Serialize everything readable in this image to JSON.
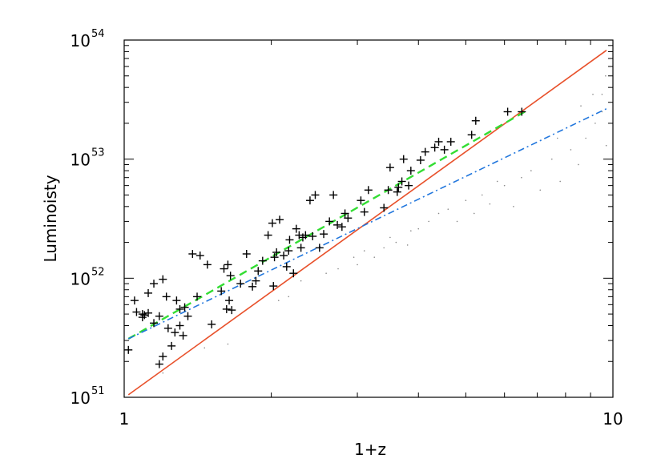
{
  "chart_data": {
    "type": "scatter",
    "title": "",
    "xlabel": "1+z",
    "ylabel": "Luminoisty",
    "xscale": "log",
    "yscale": "log",
    "xlim": [
      1,
      10
    ],
    "ylim": [
      1e+51,
      1e+54
    ],
    "x_ticks": [
      {
        "value": 1,
        "label": "1"
      },
      {
        "value": 10,
        "label": "10"
      }
    ],
    "y_ticks": [
      {
        "value": 1e+51,
        "base": "10",
        "exp": "51"
      },
      {
        "value": 1e+52,
        "base": "10",
        "exp": "52"
      },
      {
        "value": 1e+53,
        "base": "10",
        "exp": "53"
      },
      {
        "value": 1e+54,
        "base": "10",
        "exp": "54"
      }
    ],
    "grid": false,
    "legend": "none",
    "series": [
      {
        "marker": "plus",
        "color": "#000000",
        "points": [
          [
            1.02,
            2.5e+51
          ],
          [
            1.05,
            6.5e+51
          ],
          [
            1.06,
            5.2e+51
          ],
          [
            1.09,
            5e+51
          ],
          [
            1.09,
            4.7e+51
          ],
          [
            1.1,
            4.9e+51
          ],
          [
            1.12,
            5.1e+51
          ],
          [
            1.12,
            7.5e+51
          ],
          [
            1.15,
            9e+51
          ],
          [
            1.15,
            4.2e+51
          ],
          [
            1.18,
            1.9e+51
          ],
          [
            1.18,
            4.8e+51
          ],
          [
            1.2,
            2.2e+51
          ],
          [
            1.2,
            9.8e+51
          ],
          [
            1.22,
            7e+51
          ],
          [
            1.23,
            3.8e+51
          ],
          [
            1.25,
            2.7e+51
          ],
          [
            1.27,
            3.5e+51
          ],
          [
            1.28,
            6.5e+51
          ],
          [
            1.3,
            5.5e+51
          ],
          [
            1.3,
            4e+51
          ],
          [
            1.32,
            3.3e+51
          ],
          [
            1.33,
            5.7e+51
          ],
          [
            1.35,
            4.8e+51
          ],
          [
            1.38,
            1.6e+52
          ],
          [
            1.41,
            7e+51
          ],
          [
            1.43,
            1.55e+52
          ],
          [
            1.48,
            1.3e+52
          ],
          [
            1.51,
            4.1e+51
          ],
          [
            1.58,
            7.8e+51
          ],
          [
            1.6,
            1.2e+52
          ],
          [
            1.62,
            5.5e+51
          ],
          [
            1.63,
            1.3e+52
          ],
          [
            1.64,
            6.5e+51
          ],
          [
            1.65,
            1.05e+52
          ],
          [
            1.66,
            5.4e+51
          ],
          [
            1.73,
            9e+51
          ],
          [
            1.78,
            1.6e+52
          ],
          [
            1.83,
            8.5e+51
          ],
          [
            1.86,
            9.5e+51
          ],
          [
            1.88,
            1.15e+52
          ],
          [
            1.92,
            1.4e+52
          ],
          [
            1.97,
            2.3e+52
          ],
          [
            2.01,
            2.9e+52
          ],
          [
            2.02,
            8.6e+51
          ],
          [
            2.03,
            1.5e+52
          ],
          [
            2.05,
            1.65e+52
          ],
          [
            2.08,
            3.1e+52
          ],
          [
            2.12,
            1.55e+52
          ],
          [
            2.15,
            1.25e+52
          ],
          [
            2.17,
            1.7e+52
          ],
          [
            2.18,
            2.1e+52
          ],
          [
            2.22,
            1.1e+52
          ],
          [
            2.25,
            2.6e+52
          ],
          [
            2.28,
            2.3e+52
          ],
          [
            2.3,
            1.8e+52
          ],
          [
            2.32,
            2.2e+52
          ],
          [
            2.35,
            2.3e+52
          ],
          [
            2.4,
            4.5e+52
          ],
          [
            2.43,
            2.25e+52
          ],
          [
            2.46,
            5e+52
          ],
          [
            2.51,
            1.8e+52
          ],
          [
            2.56,
            2.35e+52
          ],
          [
            2.63,
            3e+52
          ],
          [
            2.68,
            5e+52
          ],
          [
            2.73,
            2.8e+52
          ],
          [
            2.79,
            2.7e+52
          ],
          [
            2.83,
            3.5e+52
          ],
          [
            2.87,
            3.2e+52
          ],
          [
            3.05,
            4.5e+52
          ],
          [
            3.1,
            3.6e+52
          ],
          [
            3.16,
            5.5e+52
          ],
          [
            3.4,
            3.9e+52
          ],
          [
            3.47,
            5.5e+52
          ],
          [
            3.5,
            8.5e+52
          ],
          [
            3.62,
            5.3e+52
          ],
          [
            3.64,
            5.8e+52
          ],
          [
            3.7,
            6.5e+52
          ],
          [
            3.73,
            1e+53
          ],
          [
            3.82,
            6e+52
          ],
          [
            3.86,
            8e+52
          ],
          [
            4.04,
            9.8e+52
          ],
          [
            4.13,
            1.15e+53
          ],
          [
            4.32,
            1.25e+53
          ],
          [
            4.4,
            1.4e+53
          ],
          [
            4.52,
            1.2e+53
          ],
          [
            4.66,
            1.4e+53
          ],
          [
            5.14,
            1.6e+53
          ],
          [
            5.24,
            2.1e+53
          ],
          [
            6.09,
            2.5e+53
          ],
          [
            6.51,
            2.5e+53
          ]
        ]
      },
      {
        "marker": "dot",
        "color": "#888888",
        "points": [
          [
            1.2,
            1.6e+51
          ],
          [
            1.46,
            2.6e+51
          ],
          [
            1.63,
            2.8e+51
          ],
          [
            2.07,
            6.5e+51
          ],
          [
            2.17,
            7e+51
          ],
          [
            2.3,
            9.5e+51
          ],
          [
            2.59,
            1.1e+52
          ],
          [
            2.74,
            1.2e+52
          ],
          [
            2.95,
            1.5e+52
          ],
          [
            3.0,
            1.3e+52
          ],
          [
            3.1,
            1.7e+52
          ],
          [
            3.25,
            1.5e+52
          ],
          [
            3.4,
            1.8e+52
          ],
          [
            3.5,
            2.2e+52
          ],
          [
            3.6,
            2e+52
          ],
          [
            3.8,
            1.9e+52
          ],
          [
            3.86,
            2.5e+52
          ],
          [
            4.0,
            2.6e+52
          ],
          [
            4.2,
            3e+52
          ],
          [
            4.4,
            3.5e+52
          ],
          [
            4.6,
            3.8e+52
          ],
          [
            4.8,
            3e+52
          ],
          [
            5.0,
            4.5e+52
          ],
          [
            5.2,
            3.5e+52
          ],
          [
            5.4,
            5e+52
          ],
          [
            5.6,
            4.2e+52
          ],
          [
            5.8,
            6.5e+52
          ],
          [
            6.0,
            6e+52
          ],
          [
            6.26,
            4e+52
          ],
          [
            6.5,
            7e+52
          ],
          [
            6.8,
            8e+52
          ],
          [
            7.1,
            5.5e+52
          ],
          [
            7.5,
            1e+53
          ],
          [
            7.8,
            6.5e+52
          ],
          [
            8.2,
            1.2e+53
          ],
          [
            8.5,
            9e+52
          ],
          [
            8.8,
            1.5e+53
          ],
          [
            9.2,
            2e+53
          ],
          [
            9.5,
            2.5e+53
          ],
          [
            9.66,
            5e+53
          ],
          [
            9.69,
            1.3e+53
          ],
          [
            9.5,
            3.5e+53
          ],
          [
            9.1,
            3.5e+53
          ],
          [
            8.6,
            2.8e+53
          ],
          [
            7.7,
            1.5e+53
          ]
        ]
      }
    ],
    "lines": [
      {
        "style": "solid",
        "color": "#e8502a",
        "x": [
          1.02,
          9.7
        ],
        "y": [
          1.05e+51,
          8.2e+53
        ]
      },
      {
        "style": "dashed",
        "color": "#33dd33",
        "x": [
          1.02,
          6.6
        ],
        "y": [
          3.1e+51,
          2.5e+53
        ]
      },
      {
        "style": "dashdot",
        "color": "#2277dd",
        "x": [
          1.02,
          9.7
        ],
        "y": [
          3.1e+51,
          2.65e+53
        ]
      }
    ]
  }
}
